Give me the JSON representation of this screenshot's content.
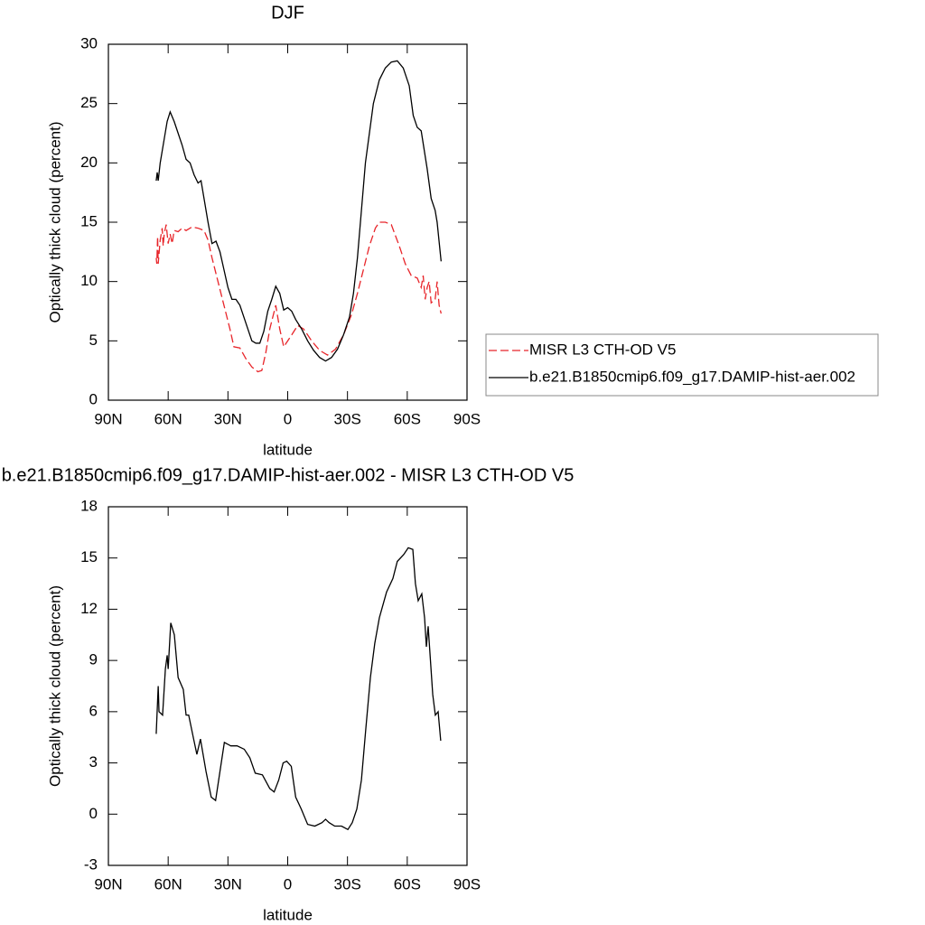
{
  "chart_data": [
    {
      "type": "line",
      "title": "DJF",
      "xlabel": "latitude",
      "ylabel": "Optically thick cloud (percent)",
      "xlim": [
        90,
        -90
      ],
      "xticks": [
        {
          "value": 90,
          "label": "90N"
        },
        {
          "value": 60,
          "label": "60N"
        },
        {
          "value": 30,
          "label": "30N"
        },
        0,
        {
          "value": -30,
          "label": "30S"
        },
        {
          "value": -60,
          "label": "60S"
        },
        {
          "value": -90,
          "label": "90S"
        }
      ],
      "ylim": [
        0,
        30
      ],
      "yticks": [
        0,
        5,
        10,
        15,
        20,
        25,
        30
      ],
      "legend": "right",
      "series": [
        {
          "name": "MISR L3 CTH-OD V5",
          "color": "#e8252a",
          "dash": "dashed",
          "x": [
            66,
            65.7,
            65.3,
            65,
            64,
            63,
            62.5,
            62,
            61,
            60,
            59,
            58,
            57,
            55,
            53,
            51,
            48,
            45,
            42,
            40,
            38,
            35,
            32,
            29,
            27,
            24,
            21,
            18,
            15,
            13,
            11,
            9,
            6,
            4,
            2,
            0,
            -2,
            -5,
            -8,
            -12,
            -16,
            -20,
            -24,
            -28,
            -32,
            -35,
            -38,
            -41,
            -44,
            -46,
            -49,
            -52,
            -56,
            -59,
            -62,
            -65,
            -67,
            -68,
            -69,
            -70,
            -71,
            -72,
            -74,
            -75,
            -76,
            -77
          ],
          "values": [
            12,
            11.5,
            13.8,
            11.5,
            13.5,
            14.5,
            13,
            14,
            14.8,
            13.2,
            14,
            13.2,
            14.3,
            14.2,
            14.5,
            14.3,
            14.6,
            14.5,
            14.3,
            13.5,
            12,
            10,
            8,
            6,
            4.5,
            4.4,
            3.5,
            2.8,
            2.4,
            2.5,
            4,
            6,
            8,
            6,
            4.5,
            5,
            5.5,
            6.3,
            6,
            5,
            4.2,
            3.8,
            4.3,
            5.5,
            7.2,
            9,
            11,
            13,
            14.5,
            15,
            15,
            14.8,
            13,
            11.5,
            10.5,
            10.3,
            9.5,
            10.5,
            8.5,
            9.5,
            10,
            8.2,
            8.5,
            10,
            8,
            7.3
          ]
        },
        {
          "name": "b.e21.B1850cmip6.f09_g17.DAMIP-hist-aer.002",
          "color": "#000000",
          "dash": "solid",
          "x": [
            66,
            65.5,
            65,
            64,
            62,
            60.5,
            59,
            57,
            55,
            53,
            51,
            49,
            47,
            45,
            43.5,
            42,
            40,
            38,
            36,
            34,
            32,
            30,
            28,
            26,
            24,
            22,
            20,
            18,
            16,
            14,
            12,
            10,
            8,
            6,
            4,
            2,
            0,
            -2,
            -4,
            -7,
            -10,
            -13,
            -16,
            -19,
            -22,
            -25,
            -28,
            -31,
            -33,
            -35,
            -37,
            -39,
            -41,
            -43,
            -46,
            -49,
            -52,
            -55,
            -58,
            -61,
            -63,
            -65,
            -67,
            -70,
            -72,
            -74,
            -75,
            -77
          ],
          "values": [
            18.5,
            19.2,
            18.5,
            20,
            22,
            23.5,
            24.3,
            23.5,
            22.5,
            21.5,
            20.3,
            20,
            19,
            18.3,
            18.5,
            17,
            15,
            13.2,
            13.4,
            12.5,
            11,
            9.5,
            8.5,
            8.5,
            8,
            7,
            6,
            5,
            4.8,
            4.8,
            5.8,
            7.5,
            8.5,
            9.6,
            9,
            7.6,
            7.8,
            7.5,
            6.8,
            6,
            5,
            4.2,
            3.6,
            3.3,
            3.6,
            4.3,
            5.5,
            7,
            9,
            12,
            16,
            20,
            22.5,
            25,
            27,
            28,
            28.5,
            28.6,
            28,
            26.5,
            24,
            23,
            22.7,
            19.5,
            17,
            16,
            15,
            11.7
          ]
        }
      ]
    },
    {
      "type": "line",
      "title": "b.e21.B1850cmip6.f09_g17.DAMIP-hist-aer.002 - MISR L3 CTH-OD V5",
      "xlabel": "latitude",
      "ylabel": "Optically thick cloud (percent)",
      "xlim": [
        90,
        -90
      ],
      "xticks": [
        {
          "value": 90,
          "label": "90N"
        },
        {
          "value": 60,
          "label": "60N"
        },
        {
          "value": 30,
          "label": "30N"
        },
        0,
        {
          "value": -30,
          "label": "30S"
        },
        {
          "value": -60,
          "label": "60S"
        },
        {
          "value": -90,
          "label": "90S"
        }
      ],
      "ylim": [
        -3,
        18
      ],
      "yticks": [
        -3,
        0,
        3,
        6,
        9,
        12,
        15,
        18
      ],
      "series": [
        {
          "color": "#000000",
          "dash": "solid",
          "x": [
            66,
            65,
            64.6,
            62.8,
            61.4,
            60.5,
            60,
            58.7,
            56.9,
            55,
            52.4,
            51,
            49.7,
            47.4,
            45.6,
            43.8,
            41,
            38.4,
            36.2,
            34,
            31.8,
            28.6,
            25.4,
            21.8,
            19,
            16.3,
            12.7,
            9,
            6.8,
            4.5,
            2.3,
            0.5,
            -1.8,
            -4,
            -6.8,
            -10,
            -13.6,
            -17.2,
            -19,
            -20.8,
            -23.6,
            -27,
            -30.2,
            -32.4,
            -34.7,
            -37,
            -39.2,
            -41.5,
            -43.7,
            -46,
            -49.6,
            -52.8,
            -55,
            -58.2,
            -60.5,
            -62.8,
            -64.1,
            -65.5,
            -67.3,
            -68.7,
            -69.6,
            -70.5,
            -72.8,
            -74.1,
            -75.5,
            -76.8
          ],
          "values": [
            4.7,
            7.5,
            6,
            5.8,
            8.5,
            9.3,
            8.5,
            11.2,
            10.5,
            8,
            7.3,
            5.8,
            5.8,
            4.5,
            3.5,
            4.4,
            2.5,
            1,
            0.8,
            2.5,
            4.2,
            4,
            4,
            3.8,
            3.3,
            2.4,
            2.3,
            1.5,
            1.3,
            2,
            3,
            3.1,
            2.8,
            1,
            0.3,
            -0.6,
            -0.7,
            -0.5,
            -0.3,
            -0.5,
            -0.7,
            -0.7,
            -0.9,
            -0.5,
            0.3,
            2,
            5,
            8,
            10,
            11.5,
            13,
            13.8,
            14.8,
            15.2,
            15.6,
            15.5,
            13.5,
            12.5,
            12.9,
            11.5,
            9.8,
            11,
            7,
            5.8,
            6,
            4.3
          ]
        }
      ]
    }
  ]
}
